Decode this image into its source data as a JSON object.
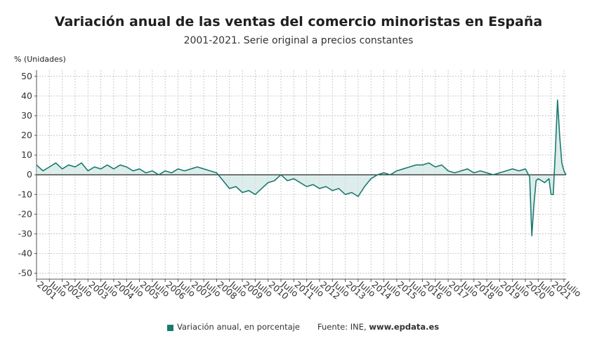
{
  "header": {
    "title": "Variación anual de las ventas del comercio minoristas en España",
    "subtitle": "2001-2021. Serie original a precios constantes"
  },
  "chart_data": {
    "type": "area",
    "title": "Variación anual de las ventas del comercio minoristas en España",
    "subtitle": "2001-2021. Serie original a precios constantes",
    "ylabel": "% (Unidades)",
    "ylim": [
      -53,
      51
    ],
    "yticks": [
      50,
      40,
      30,
      20,
      10,
      0,
      -10,
      -20,
      -30,
      -40,
      -50
    ],
    "grid": true,
    "grid_style": "dotted",
    "line_color": "#1a7a6e",
    "fill_color": "#cfe6e4",
    "x_start": "2001-01",
    "x_end": "2021-08",
    "xtick_labels": [
      "2001",
      "Julio",
      "2002",
      "Julio",
      "2003",
      "Julio",
      "2004",
      "Julio",
      "2005",
      "Julio",
      "2006",
      "Julio",
      "2007",
      "Julio",
      "2008",
      "Julio",
      "2009",
      "Julio",
      "2010",
      "Julio",
      "2011",
      "Julio",
      "2012",
      "Julio",
      "2013",
      "Julio",
      "2014",
      "Julio",
      "2015",
      "Julio",
      "2016",
      "Julio",
      "2017",
      "Julio",
      "2018",
      "Julio",
      "2019",
      "Julio",
      "2020",
      "Julio",
      "2021",
      "Julio"
    ],
    "series": [
      {
        "name": "Variación anual, en porcentaje",
        "x": [
          "2001-01",
          "2001-04",
          "2001-07",
          "2001-10",
          "2002-01",
          "2002-04",
          "2002-07",
          "2002-10",
          "2003-01",
          "2003-04",
          "2003-07",
          "2003-10",
          "2004-01",
          "2004-04",
          "2004-07",
          "2004-10",
          "2005-01",
          "2005-04",
          "2005-07",
          "2005-10",
          "2006-01",
          "2006-04",
          "2006-07",
          "2006-10",
          "2007-01",
          "2007-04",
          "2007-07",
          "2007-10",
          "2008-01",
          "2008-04",
          "2008-07",
          "2008-10",
          "2009-01",
          "2009-04",
          "2009-07",
          "2009-10",
          "2010-01",
          "2010-04",
          "2010-07",
          "2010-10",
          "2011-01",
          "2011-04",
          "2011-07",
          "2011-10",
          "2012-01",
          "2012-04",
          "2012-07",
          "2012-10",
          "2013-01",
          "2013-04",
          "2013-07",
          "2013-10",
          "2014-01",
          "2014-04",
          "2014-07",
          "2014-10",
          "2015-01",
          "2015-04",
          "2015-07",
          "2015-10",
          "2016-01",
          "2016-04",
          "2016-07",
          "2016-10",
          "2017-01",
          "2017-04",
          "2017-07",
          "2017-10",
          "2018-01",
          "2018-04",
          "2018-07",
          "2018-10",
          "2019-01",
          "2019-04",
          "2019-07",
          "2019-10",
          "2020-01",
          "2020-03",
          "2020-04",
          "2020-05",
          "2020-06",
          "2020-07",
          "2020-10",
          "2020-12",
          "2021-01",
          "2021-02",
          "2021-03",
          "2021-04",
          "2021-05",
          "2021-06",
          "2021-07",
          "2021-08"
        ],
        "values": [
          5,
          2,
          4,
          6,
          3,
          5,
          4,
          6,
          2,
          4,
          3,
          5,
          3,
          5,
          4,
          2,
          3,
          1,
          2,
          0,
          2,
          1,
          3,
          2,
          3,
          4,
          3,
          2,
          1,
          -3,
          -7,
          -6,
          -9,
          -8,
          -10,
          -7,
          -4,
          -3,
          0,
          -3,
          -2,
          -4,
          -6,
          -5,
          -7,
          -6,
          -8,
          -7,
          -10,
          -9,
          -11,
          -6,
          -2,
          0,
          1,
          0,
          2,
          3,
          4,
          5,
          5,
          6,
          4,
          5,
          2,
          1,
          2,
          3,
          1,
          2,
          1,
          0,
          1,
          2,
          3,
          2,
          3,
          -1,
          -31,
          -15,
          -3,
          -2,
          -4,
          -2,
          -10,
          -10,
          12,
          38,
          20,
          6,
          2,
          0
        ]
      }
    ]
  },
  "legend": {
    "series_label": "Variación anual, en porcentaje",
    "source_prefix": "Fuente: INE, ",
    "source_site": "www.epdata.es"
  }
}
